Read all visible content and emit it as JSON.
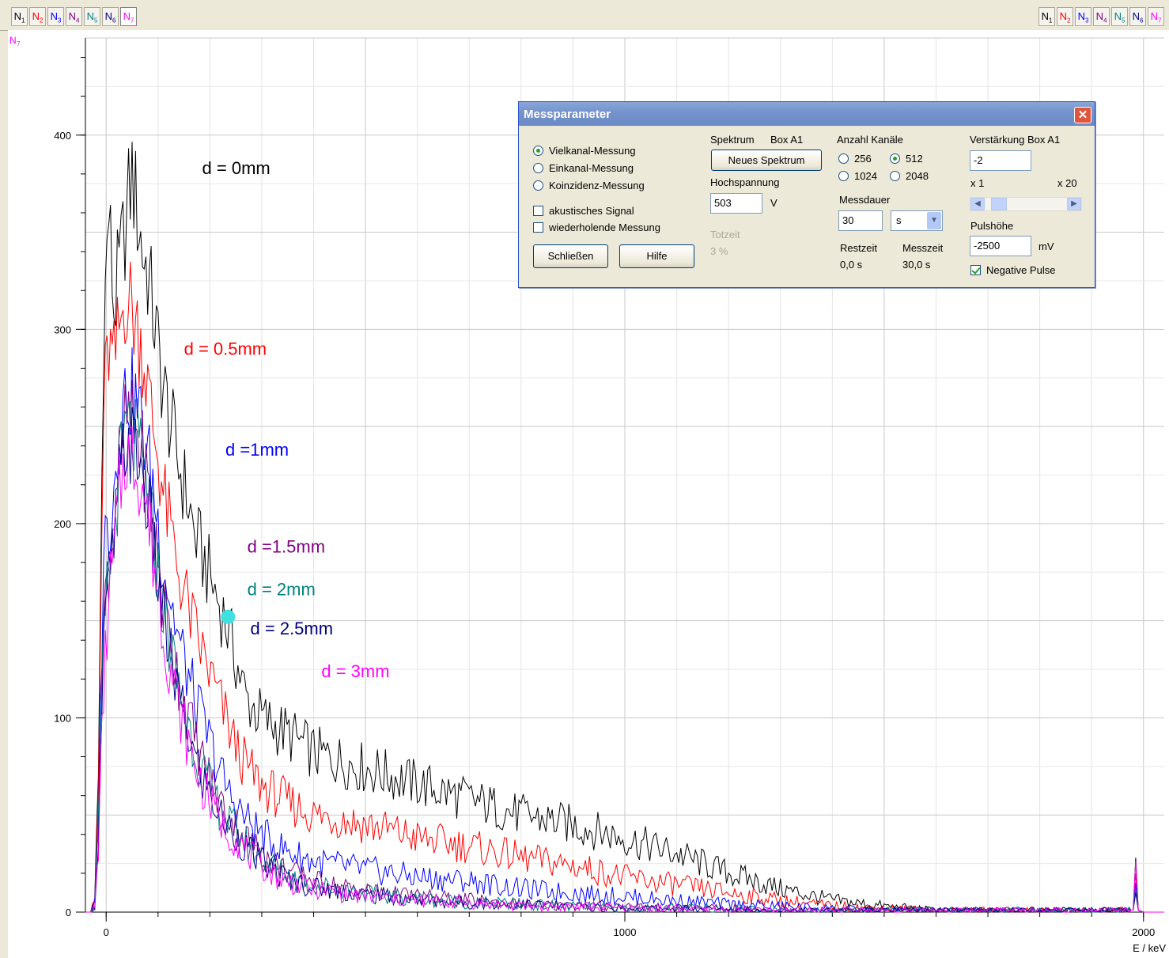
{
  "tabs_left": [
    {
      "label": "N",
      "sub": "1",
      "color": "#000000"
    },
    {
      "label": "N",
      "sub": "2",
      "color": "#ff0000"
    },
    {
      "label": "N",
      "sub": "3",
      "color": "#0000ff"
    },
    {
      "label": "N",
      "sub": "4",
      "color": "#800080"
    },
    {
      "label": "N",
      "sub": "5",
      "color": "#008080"
    },
    {
      "label": "N",
      "sub": "6",
      "color": "#000080"
    },
    {
      "label": "N",
      "sub": "7",
      "color": "#ff00ff"
    }
  ],
  "tabs_right": [
    {
      "label": "N",
      "sub": "1",
      "color": "#000000"
    },
    {
      "label": "N",
      "sub": "2",
      "color": "#ff0000"
    },
    {
      "label": "N",
      "sub": "3",
      "color": "#0000ff"
    },
    {
      "label": "N",
      "sub": "4",
      "color": "#800080"
    },
    {
      "label": "N",
      "sub": "5",
      "color": "#008080"
    },
    {
      "label": "N",
      "sub": "6",
      "color": "#000080"
    },
    {
      "label": "N",
      "sub": "7",
      "color": "#ff00ff"
    }
  ],
  "active_tab_index": 6,
  "y_axis_name": "N",
  "y_axis_sub": "7",
  "chart_data": {
    "type": "line",
    "xlabel": "E / keV",
    "xlim": [
      -40,
      2040
    ],
    "ylim": [
      0,
      450
    ],
    "x_ticks": [
      "0",
      "1000",
      "2000"
    ],
    "x_tick_values": [
      0,
      1000,
      2000
    ],
    "y_ticks": [
      "0",
      "100",
      "200",
      "300",
      "400"
    ],
    "y_tick_values": [
      0,
      100,
      200,
      300,
      400
    ],
    "grid": true,
    "marker": {
      "x": 235,
      "y": 152,
      "color": "#40e0e0"
    },
    "series": [
      {
        "name": "d = 0mm",
        "color": "#000000",
        "x": [
          -40,
          -30,
          -22,
          -15,
          -5,
          5,
          15,
          25,
          40,
          50,
          60,
          70,
          80,
          90,
          100,
          110,
          125,
          140,
          155,
          170,
          190,
          210,
          230,
          250,
          270,
          300,
          330,
          360,
          400,
          450,
          500,
          550,
          600,
          700,
          800,
          900,
          1000,
          1100,
          1200,
          1300,
          1400,
          1500,
          1600,
          1700,
          1800,
          1900,
          1980,
          1985,
          1990,
          2000,
          2040
        ],
        "y": [
          0,
          0,
          5,
          70,
          300,
          360,
          310,
          330,
          360,
          380,
          360,
          340,
          330,
          310,
          290,
          270,
          250,
          230,
          215,
          195,
          180,
          165,
          150,
          130,
          110,
          100,
          95,
          90,
          82,
          78,
          74,
          70,
          66,
          58,
          50,
          45,
          38,
          30,
          20,
          12,
          6,
          3,
          1,
          1,
          1,
          1,
          1,
          28,
          1,
          0,
          0
        ]
      },
      {
        "name": "d = 0.5mm",
        "color": "#ff0000",
        "x": [
          -40,
          -30,
          -22,
          -15,
          -5,
          5,
          15,
          25,
          40,
          50,
          60,
          70,
          80,
          90,
          100,
          110,
          125,
          140,
          155,
          170,
          190,
          210,
          230,
          250,
          270,
          300,
          330,
          360,
          400,
          450,
          500,
          550,
          600,
          700,
          800,
          900,
          1000,
          1100,
          1200,
          1300,
          1400,
          1500,
          1600,
          1700,
          1800,
          1900,
          1980,
          1985,
          1990,
          2000,
          2040
        ],
        "y": [
          0,
          0,
          5,
          60,
          260,
          290,
          280,
          300,
          320,
          310,
          300,
          290,
          270,
          250,
          235,
          215,
          195,
          175,
          160,
          145,
          130,
          115,
          100,
          85,
          75,
          65,
          60,
          55,
          50,
          48,
          45,
          42,
          38,
          34,
          28,
          24,
          18,
          14,
          10,
          6,
          3,
          2,
          1,
          1,
          1,
          1,
          1,
          20,
          1,
          0,
          0
        ]
      },
      {
        "name": "d = 1mm",
        "color": "#0000ff",
        "x": [
          -40,
          -30,
          -22,
          -15,
          -5,
          5,
          15,
          25,
          40,
          50,
          60,
          70,
          80,
          90,
          100,
          110,
          125,
          140,
          155,
          170,
          190,
          210,
          230,
          250,
          270,
          300,
          330,
          360,
          400,
          450,
          500,
          550,
          600,
          700,
          800,
          900,
          1000,
          1100,
          1200,
          1300,
          1400,
          1500,
          1600,
          1700,
          1800,
          1900,
          1980,
          1985,
          1990,
          2000,
          2040
        ],
        "y": [
          0,
          0,
          4,
          50,
          190,
          200,
          220,
          250,
          270,
          265,
          260,
          250,
          235,
          220,
          200,
          180,
          160,
          140,
          125,
          110,
          95,
          80,
          65,
          55,
          48,
          40,
          34,
          30,
          26,
          24,
          22,
          20,
          18,
          16,
          12,
          10,
          8,
          6,
          4,
          3,
          2,
          1,
          1,
          1,
          1,
          1,
          1,
          15,
          1,
          0,
          0
        ]
      },
      {
        "name": "d = 1.5mm",
        "color": "#800080",
        "x": [
          -40,
          -30,
          -22,
          -15,
          -5,
          5,
          15,
          25,
          40,
          50,
          60,
          70,
          80,
          90,
          100,
          110,
          125,
          140,
          155,
          170,
          190,
          210,
          230,
          250,
          270,
          300,
          330,
          360,
          400,
          450,
          500,
          550,
          600,
          700,
          800,
          900,
          1000,
          1100,
          1200,
          1300,
          1400,
          1500,
          1600,
          1700,
          1800,
          1900,
          1980,
          1985,
          1990,
          2000,
          2040
        ],
        "y": [
          0,
          0,
          4,
          45,
          150,
          180,
          200,
          230,
          255,
          250,
          245,
          235,
          220,
          200,
          180,
          160,
          140,
          120,
          105,
          90,
          75,
          62,
          52,
          45,
          38,
          30,
          24,
          20,
          16,
          13,
          11,
          9,
          8,
          6,
          4,
          3,
          3,
          2,
          2,
          1,
          1,
          1,
          1,
          1,
          1,
          1,
          1,
          12,
          1,
          0,
          0
        ]
      },
      {
        "name": "d = 2mm",
        "color": "#008080",
        "x": [
          -40,
          -30,
          -22,
          -15,
          -5,
          5,
          15,
          25,
          40,
          50,
          60,
          70,
          80,
          90,
          100,
          110,
          125,
          140,
          155,
          170,
          190,
          210,
          230,
          250,
          270,
          300,
          330,
          360,
          400,
          450,
          500,
          550,
          600,
          700,
          800,
          900,
          1000,
          1100,
          1200,
          1300,
          1400,
          1500,
          1600,
          1700,
          1800,
          1900,
          1980,
          1985,
          1990,
          2000,
          2040
        ],
        "y": [
          0,
          0,
          4,
          42,
          140,
          175,
          195,
          225,
          250,
          245,
          240,
          230,
          215,
          195,
          175,
          155,
          135,
          115,
          100,
          85,
          70,
          58,
          48,
          42,
          35,
          28,
          22,
          18,
          14,
          12,
          10,
          8,
          7,
          5,
          4,
          3,
          2,
          2,
          2,
          1,
          1,
          1,
          1,
          1,
          1,
          1,
          1,
          12,
          1,
          0,
          0
        ]
      },
      {
        "name": "d = 2.5mm",
        "color": "#000080",
        "x": [
          -40,
          -30,
          -22,
          -15,
          -5,
          5,
          15,
          25,
          40,
          50,
          60,
          70,
          80,
          90,
          100,
          110,
          125,
          140,
          155,
          170,
          190,
          210,
          230,
          250,
          270,
          300,
          330,
          360,
          400,
          450,
          500,
          550,
          600,
          700,
          800,
          900,
          1000,
          1100,
          1200,
          1300,
          1400,
          1500,
          1600,
          1700,
          1800,
          1900,
          1980,
          1985,
          1990,
          2000,
          2040
        ],
        "y": [
          0,
          0,
          4,
          40,
          135,
          170,
          190,
          220,
          245,
          240,
          235,
          225,
          210,
          190,
          170,
          150,
          130,
          110,
          95,
          80,
          66,
          55,
          45,
          40,
          33,
          26,
          20,
          16,
          13,
          11,
          9,
          8,
          6,
          5,
          4,
          3,
          2,
          2,
          1,
          1,
          1,
          1,
          1,
          1,
          1,
          1,
          1,
          10,
          1,
          0,
          0
        ]
      },
      {
        "name": "d = 3mm",
        "color": "#ff00ff",
        "x": [
          -40,
          -30,
          -22,
          -15,
          -5,
          5,
          15,
          25,
          40,
          50,
          60,
          70,
          80,
          90,
          100,
          110,
          125,
          140,
          155,
          170,
          190,
          210,
          230,
          250,
          270,
          300,
          330,
          360,
          400,
          450,
          500,
          550,
          600,
          700,
          800,
          900,
          1000,
          1100,
          1200,
          1300,
          1400,
          1500,
          1600,
          1700,
          1800,
          1900,
          1980,
          1985,
          1990,
          2000,
          2040
        ],
        "y": [
          0,
          0,
          3,
          35,
          115,
          160,
          185,
          215,
          240,
          235,
          230,
          220,
          205,
          185,
          165,
          145,
          125,
          105,
          90,
          76,
          62,
          52,
          43,
          38,
          31,
          24,
          18,
          15,
          12,
          10,
          8,
          7,
          6,
          5,
          3,
          3,
          2,
          2,
          1,
          1,
          1,
          1,
          1,
          1,
          1,
          1,
          1,
          26,
          1,
          0,
          0
        ]
      }
    ],
    "annotations": [
      {
        "text": "d = 0mm",
        "x": 185,
        "y": 380,
        "color": "#000000"
      },
      {
        "text": "d = 0.5mm",
        "x": 150,
        "y": 287,
        "color": "#ff0000"
      },
      {
        "text": "d =1mm",
        "x": 230,
        "y": 235,
        "color": "#0000ff"
      },
      {
        "text": "d =1.5mm",
        "x": 272,
        "y": 185,
        "color": "#800080"
      },
      {
        "text": "d = 2mm",
        "x": 272,
        "y": 163,
        "color": "#008080"
      },
      {
        "text": "d = 2.5mm",
        "x": 278,
        "y": 143,
        "color": "#000080"
      },
      {
        "text": "d = 3mm",
        "x": 415,
        "y": 121,
        "color": "#ff00ff"
      }
    ]
  },
  "dialog": {
    "title": "Messparameter",
    "close_icon": "close-icon",
    "mode_options": [
      "Vielkanal-Messung",
      "Einkanal-Messung",
      "Koinzidenz-Messung"
    ],
    "mode_selected": 0,
    "acoustic_label": "akustisches Signal",
    "acoustic_checked": false,
    "repeat_label": "wiederholende Messung",
    "repeat_checked": false,
    "close_button": "Schließen",
    "help_button": "Hilfe",
    "spectrum_label": "Spektrum",
    "box_label": "Box A1",
    "new_spectrum_button": "Neues Spektrum",
    "hv_label": "Hochspannung",
    "hv_value": "503",
    "hv_unit": "V",
    "deadtime_label": "Totzeit",
    "deadtime_value": "3 %",
    "channels_label": "Anzahl Kanäle",
    "channel_options": [
      "256",
      "512",
      "1024",
      "2048"
    ],
    "channel_selected": 1,
    "duration_label": "Messdauer",
    "duration_value": "30",
    "duration_unit": "s",
    "remaining_label": "Restzeit",
    "remaining_value": "0,0 s",
    "meastime_label": "Messzeit",
    "meastime_value": "30,0 s",
    "gain_label": "Verstärkung Box A1",
    "gain_value": "-2",
    "gain_min": "x 1",
    "gain_max": "x 20",
    "gain_level": 0.1,
    "pulse_label": "Pulshöhe",
    "pulse_value": "-2500",
    "pulse_unit": "mV",
    "negative_label": "Negative Pulse",
    "negative_checked": true
  }
}
